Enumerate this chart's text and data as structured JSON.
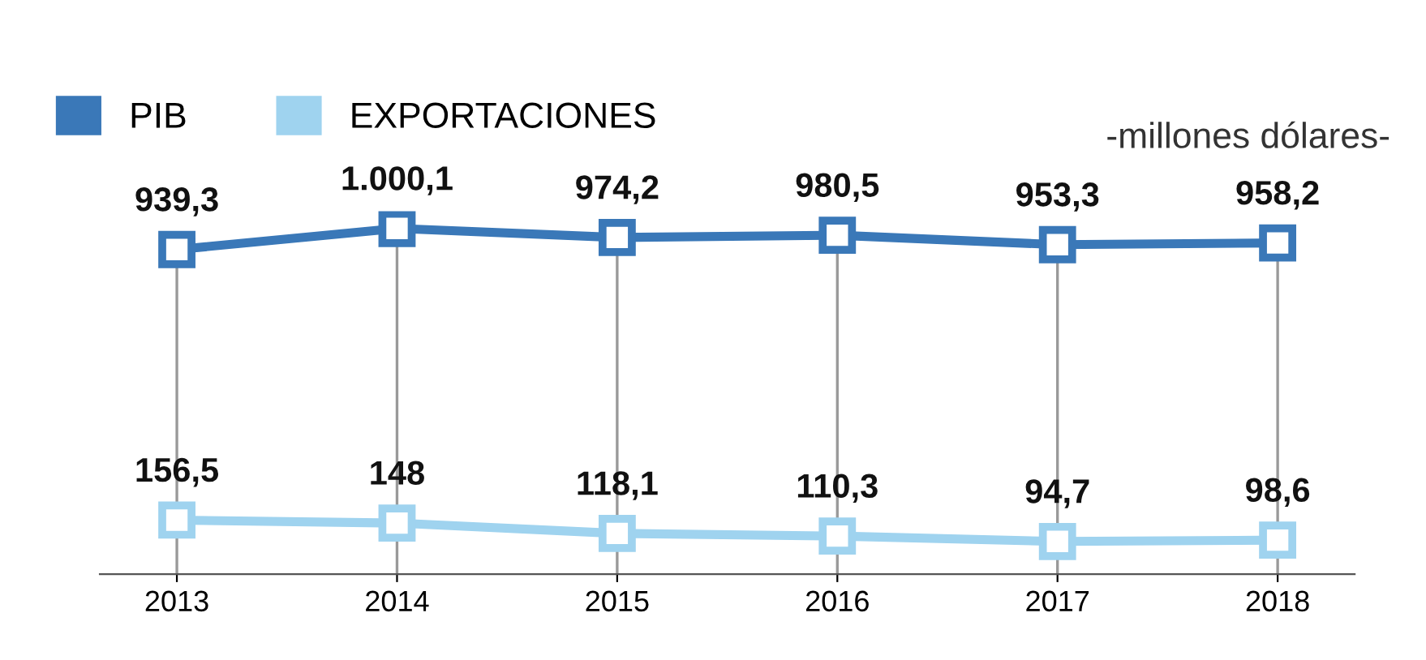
{
  "chart_data": {
    "type": "line",
    "categories": [
      "2013",
      "2014",
      "2015",
      "2016",
      "2017",
      "2018"
    ],
    "series": [
      {
        "name": "PIB",
        "color": "#3a78b8",
        "values": [
          939.3,
          1000.1,
          974.2,
          980.5,
          953.3,
          958.2
        ],
        "value_labels": [
          "939,3",
          "1.000,1",
          "974,2",
          "980,5",
          "953,3",
          "958,2"
        ]
      },
      {
        "name": "EXPORTACIONES",
        "color": "#9fd3ef",
        "values": [
          156.5,
          148,
          118.1,
          110.3,
          94.7,
          98.6
        ],
        "value_labels": [
          "156,5",
          "148",
          "118,1",
          "110,3",
          "94,7",
          "98,6"
        ]
      }
    ],
    "annotations": [
      "-millones dólares-"
    ],
    "marker": "square",
    "line_style": "solid",
    "grid": "x",
    "legend": "top left"
  }
}
